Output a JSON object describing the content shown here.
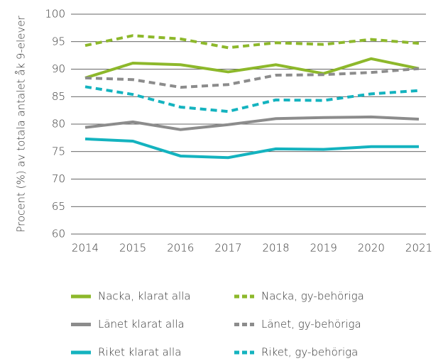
{
  "chart_data": {
    "type": "line",
    "y_label": "Procent (%) av totala antalet åk 9-elever",
    "categories": [
      "2014",
      "2015",
      "2016",
      "2017",
      "2018",
      "2019",
      "2020",
      "2021"
    ],
    "ylim": [
      60,
      100
    ],
    "yticks": [
      60,
      65,
      70,
      75,
      80,
      85,
      90,
      95,
      100
    ],
    "grid": true,
    "series": [
      {
        "name": "Nacka, klarat alla",
        "color": "#8db82b",
        "style": "solid",
        "values": [
          88.4,
          91.1,
          90.8,
          89.5,
          90.8,
          89.2,
          91.9,
          90.1
        ]
      },
      {
        "name": "Nacka, gy-behöriga",
        "color": "#8db82b",
        "style": "dashed",
        "values": [
          94.3,
          96.1,
          95.5,
          93.9,
          94.8,
          94.5,
          95.4,
          94.7
        ]
      },
      {
        "name": "Länet klarat alla",
        "color": "#8c8c8c",
        "style": "solid",
        "values": [
          79.4,
          80.4,
          79.0,
          79.9,
          81.0,
          81.2,
          81.3,
          80.9
        ]
      },
      {
        "name": "Länet, gy-behöriga",
        "color": "#8c8c8c",
        "style": "dashed",
        "values": [
          88.4,
          88.1,
          86.7,
          87.2,
          88.9,
          89.0,
          89.4,
          90.1
        ]
      },
      {
        "name": "Riket klarat alla",
        "color": "#14b3bf",
        "style": "solid",
        "values": [
          77.3,
          76.9,
          74.2,
          73.9,
          75.5,
          75.4,
          75.9,
          75.9
        ]
      },
      {
        "name": "Riket, gy-behöriga",
        "color": "#14b3bf",
        "style": "dashed",
        "values": [
          86.8,
          85.4,
          83.1,
          82.3,
          84.4,
          84.3,
          85.5,
          86.1
        ]
      }
    ]
  }
}
